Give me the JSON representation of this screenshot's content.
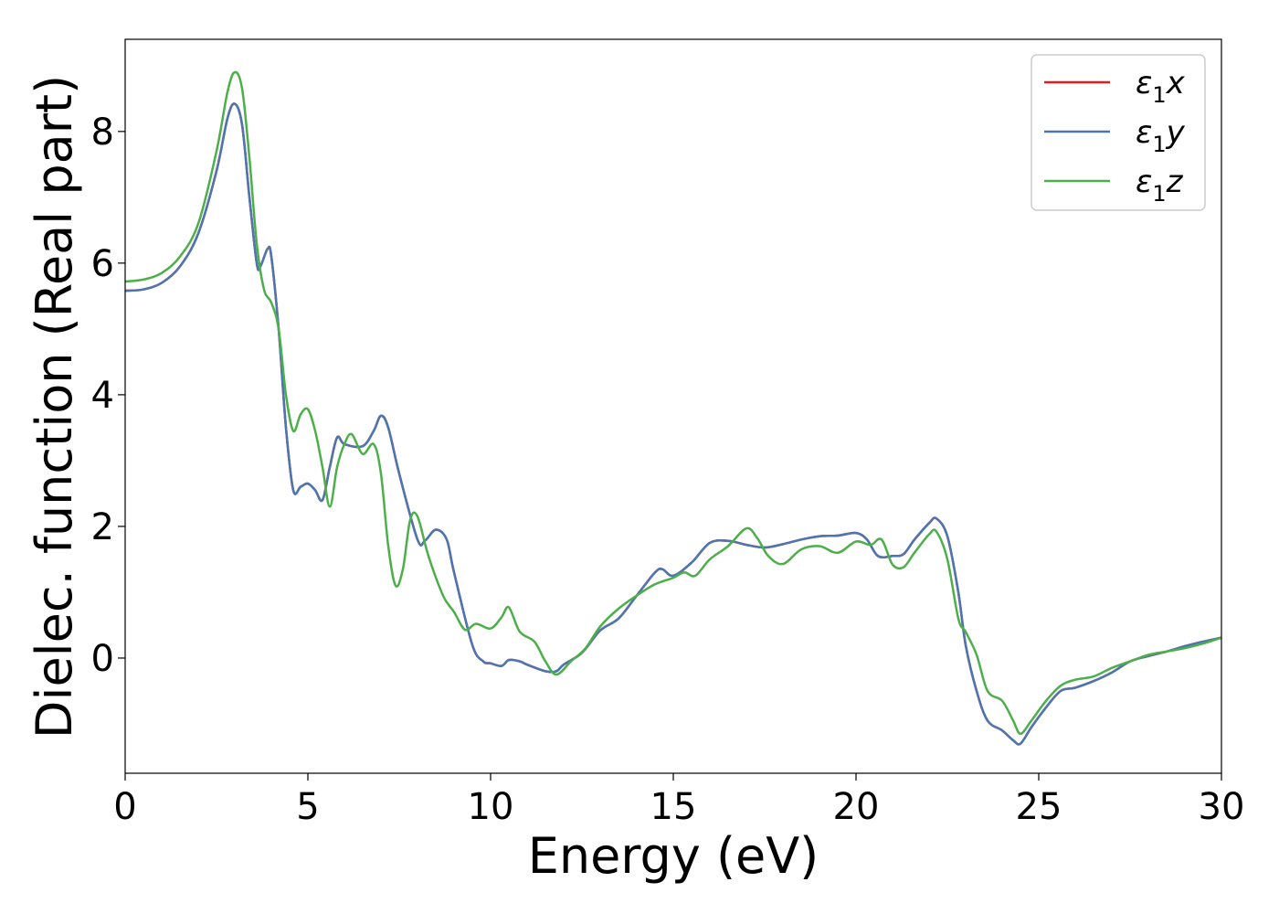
{
  "chart_data": {
    "type": "line",
    "title": "",
    "xlabel": "Energy (eV)",
    "ylabel": "Dielec. function (Real part)",
    "xlim": [
      0,
      30
    ],
    "ylim": [
      -1.75,
      9.4
    ],
    "xticks": [
      0,
      5,
      10,
      15,
      20,
      25,
      30
    ],
    "yticks": [
      0,
      2,
      4,
      6,
      8
    ],
    "grid": false,
    "legend_position": "top-right",
    "series": [
      {
        "name": "ε1x",
        "legend_base": "ε",
        "legend_sub": "1",
        "legend_axis": "x",
        "color": "#e41a1c",
        "points": [
          [
            0,
            5.58
          ],
          [
            0.5,
            5.6
          ],
          [
            1,
            5.7
          ],
          [
            1.5,
            5.95
          ],
          [
            2,
            6.45
          ],
          [
            2.5,
            7.4
          ],
          [
            2.8,
            8.2
          ],
          [
            3.0,
            8.42
          ],
          [
            3.2,
            8.1
          ],
          [
            3.4,
            7.0
          ],
          [
            3.6,
            6.0
          ],
          [
            3.7,
            5.95
          ],
          [
            3.9,
            6.22
          ],
          [
            4.0,
            6.1
          ],
          [
            4.2,
            5.0
          ],
          [
            4.4,
            3.5
          ],
          [
            4.6,
            2.55
          ],
          [
            4.8,
            2.6
          ],
          [
            5.0,
            2.65
          ],
          [
            5.2,
            2.55
          ],
          [
            5.4,
            2.4
          ],
          [
            5.6,
            2.9
          ],
          [
            5.8,
            3.35
          ],
          [
            6.0,
            3.25
          ],
          [
            6.5,
            3.22
          ],
          [
            6.8,
            3.45
          ],
          [
            7.0,
            3.68
          ],
          [
            7.2,
            3.5
          ],
          [
            7.5,
            2.8
          ],
          [
            8.0,
            1.8
          ],
          [
            8.2,
            1.78
          ],
          [
            8.5,
            1.95
          ],
          [
            8.8,
            1.8
          ],
          [
            9.0,
            1.3
          ],
          [
            9.5,
            0.2
          ],
          [
            9.8,
            -0.05
          ],
          [
            10.0,
            -0.08
          ],
          [
            10.3,
            -0.12
          ],
          [
            10.5,
            -0.03
          ],
          [
            10.8,
            -0.05
          ],
          [
            11.0,
            -0.1
          ],
          [
            11.5,
            -0.2
          ],
          [
            11.8,
            -0.2
          ],
          [
            12.0,
            -0.1
          ],
          [
            12.5,
            0.08
          ],
          [
            13.0,
            0.42
          ],
          [
            13.5,
            0.6
          ],
          [
            14.0,
            0.95
          ],
          [
            14.5,
            1.3
          ],
          [
            14.7,
            1.35
          ],
          [
            15.0,
            1.25
          ],
          [
            15.5,
            1.45
          ],
          [
            16.0,
            1.75
          ],
          [
            16.5,
            1.78
          ],
          [
            17.0,
            1.72
          ],
          [
            17.5,
            1.68
          ],
          [
            18.0,
            1.73
          ],
          [
            18.5,
            1.8
          ],
          [
            19.0,
            1.85
          ],
          [
            19.5,
            1.86
          ],
          [
            20.0,
            1.9
          ],
          [
            20.3,
            1.8
          ],
          [
            20.6,
            1.55
          ],
          [
            21.0,
            1.55
          ],
          [
            21.3,
            1.58
          ],
          [
            21.6,
            1.8
          ],
          [
            22.0,
            2.05
          ],
          [
            22.2,
            2.12
          ],
          [
            22.5,
            1.85
          ],
          [
            22.8,
            1.0
          ],
          [
            23.0,
            0.2
          ],
          [
            23.3,
            -0.5
          ],
          [
            23.6,
            -0.95
          ],
          [
            24.0,
            -1.1
          ],
          [
            24.3,
            -1.25
          ],
          [
            24.5,
            -1.3
          ],
          [
            24.8,
            -1.05
          ],
          [
            25.2,
            -0.75
          ],
          [
            25.6,
            -0.5
          ],
          [
            26.0,
            -0.45
          ],
          [
            26.5,
            -0.35
          ],
          [
            27.0,
            -0.22
          ],
          [
            27.5,
            -0.05
          ],
          [
            28.0,
            0.03
          ],
          [
            28.5,
            0.1
          ],
          [
            29.0,
            0.18
          ],
          [
            29.5,
            0.25
          ],
          [
            30.0,
            0.31
          ]
        ]
      },
      {
        "name": "ε1y",
        "legend_base": "ε",
        "legend_sub": "1",
        "legend_axis": "y",
        "color": "#4a77b3",
        "points": [
          [
            0,
            5.58
          ],
          [
            0.5,
            5.6
          ],
          [
            1,
            5.7
          ],
          [
            1.5,
            5.95
          ],
          [
            2,
            6.45
          ],
          [
            2.5,
            7.4
          ],
          [
            2.8,
            8.2
          ],
          [
            3.0,
            8.42
          ],
          [
            3.2,
            8.1
          ],
          [
            3.4,
            7.0
          ],
          [
            3.6,
            6.0
          ],
          [
            3.7,
            5.95
          ],
          [
            3.9,
            6.22
          ],
          [
            4.0,
            6.1
          ],
          [
            4.2,
            5.0
          ],
          [
            4.4,
            3.5
          ],
          [
            4.6,
            2.55
          ],
          [
            4.8,
            2.6
          ],
          [
            5.0,
            2.65
          ],
          [
            5.2,
            2.55
          ],
          [
            5.4,
            2.4
          ],
          [
            5.6,
            2.9
          ],
          [
            5.8,
            3.35
          ],
          [
            6.0,
            3.25
          ],
          [
            6.5,
            3.22
          ],
          [
            6.8,
            3.45
          ],
          [
            7.0,
            3.68
          ],
          [
            7.2,
            3.5
          ],
          [
            7.5,
            2.8
          ],
          [
            8.0,
            1.8
          ],
          [
            8.2,
            1.78
          ],
          [
            8.5,
            1.95
          ],
          [
            8.8,
            1.8
          ],
          [
            9.0,
            1.3
          ],
          [
            9.5,
            0.2
          ],
          [
            9.8,
            -0.05
          ],
          [
            10.0,
            -0.08
          ],
          [
            10.3,
            -0.12
          ],
          [
            10.5,
            -0.03
          ],
          [
            10.8,
            -0.05
          ],
          [
            11.0,
            -0.1
          ],
          [
            11.5,
            -0.2
          ],
          [
            11.8,
            -0.2
          ],
          [
            12.0,
            -0.1
          ],
          [
            12.5,
            0.08
          ],
          [
            13.0,
            0.42
          ],
          [
            13.5,
            0.6
          ],
          [
            14.0,
            0.95
          ],
          [
            14.5,
            1.3
          ],
          [
            14.7,
            1.35
          ],
          [
            15.0,
            1.25
          ],
          [
            15.5,
            1.45
          ],
          [
            16.0,
            1.75
          ],
          [
            16.5,
            1.78
          ],
          [
            17.0,
            1.72
          ],
          [
            17.5,
            1.68
          ],
          [
            18.0,
            1.73
          ],
          [
            18.5,
            1.8
          ],
          [
            19.0,
            1.85
          ],
          [
            19.5,
            1.86
          ],
          [
            20.0,
            1.9
          ],
          [
            20.3,
            1.8
          ],
          [
            20.6,
            1.55
          ],
          [
            21.0,
            1.55
          ],
          [
            21.3,
            1.58
          ],
          [
            21.6,
            1.8
          ],
          [
            22.0,
            2.05
          ],
          [
            22.2,
            2.12
          ],
          [
            22.5,
            1.85
          ],
          [
            22.8,
            1.0
          ],
          [
            23.0,
            0.2
          ],
          [
            23.3,
            -0.5
          ],
          [
            23.6,
            -0.95
          ],
          [
            24.0,
            -1.1
          ],
          [
            24.3,
            -1.25
          ],
          [
            24.5,
            -1.3
          ],
          [
            24.8,
            -1.05
          ],
          [
            25.2,
            -0.75
          ],
          [
            25.6,
            -0.5
          ],
          [
            26.0,
            -0.45
          ],
          [
            26.5,
            -0.35
          ],
          [
            27.0,
            -0.22
          ],
          [
            27.5,
            -0.05
          ],
          [
            28.0,
            0.03
          ],
          [
            28.5,
            0.1
          ],
          [
            29.0,
            0.18
          ],
          [
            29.5,
            0.25
          ],
          [
            30.0,
            0.31
          ]
        ]
      },
      {
        "name": "ε1z",
        "legend_base": "ε",
        "legend_sub": "1",
        "legend_axis": "z",
        "color": "#4daf4a",
        "points": [
          [
            0,
            5.72
          ],
          [
            0.5,
            5.75
          ],
          [
            1,
            5.85
          ],
          [
            1.5,
            6.1
          ],
          [
            2,
            6.6
          ],
          [
            2.5,
            7.7
          ],
          [
            2.8,
            8.6
          ],
          [
            3.0,
            8.9
          ],
          [
            3.2,
            8.65
          ],
          [
            3.4,
            7.6
          ],
          [
            3.6,
            6.3
          ],
          [
            3.8,
            5.6
          ],
          [
            4.0,
            5.4
          ],
          [
            4.2,
            5.0
          ],
          [
            4.4,
            4.0
          ],
          [
            4.6,
            3.45
          ],
          [
            4.8,
            3.7
          ],
          [
            5.0,
            3.78
          ],
          [
            5.2,
            3.45
          ],
          [
            5.4,
            2.9
          ],
          [
            5.6,
            2.3
          ],
          [
            5.8,
            2.9
          ],
          [
            6.0,
            3.25
          ],
          [
            6.2,
            3.4
          ],
          [
            6.5,
            3.1
          ],
          [
            6.8,
            3.25
          ],
          [
            7.0,
            2.8
          ],
          [
            7.2,
            1.7
          ],
          [
            7.4,
            1.1
          ],
          [
            7.6,
            1.35
          ],
          [
            7.8,
            2.1
          ],
          [
            8.0,
            2.15
          ],
          [
            8.3,
            1.55
          ],
          [
            8.7,
            0.95
          ],
          [
            9.0,
            0.7
          ],
          [
            9.3,
            0.43
          ],
          [
            9.6,
            0.52
          ],
          [
            10.0,
            0.45
          ],
          [
            10.3,
            0.62
          ],
          [
            10.5,
            0.77
          ],
          [
            10.8,
            0.4
          ],
          [
            11.2,
            0.25
          ],
          [
            11.5,
            -0.05
          ],
          [
            11.8,
            -0.25
          ],
          [
            12.2,
            -0.05
          ],
          [
            12.6,
            0.15
          ],
          [
            13.0,
            0.48
          ],
          [
            13.5,
            0.75
          ],
          [
            14.0,
            0.95
          ],
          [
            14.5,
            1.12
          ],
          [
            15.0,
            1.22
          ],
          [
            15.3,
            1.3
          ],
          [
            15.6,
            1.25
          ],
          [
            16.0,
            1.5
          ],
          [
            16.5,
            1.7
          ],
          [
            17.0,
            1.97
          ],
          [
            17.3,
            1.82
          ],
          [
            17.6,
            1.55
          ],
          [
            18.0,
            1.43
          ],
          [
            18.5,
            1.65
          ],
          [
            19.0,
            1.7
          ],
          [
            19.5,
            1.6
          ],
          [
            20.0,
            1.77
          ],
          [
            20.4,
            1.72
          ],
          [
            20.7,
            1.8
          ],
          [
            21.0,
            1.42
          ],
          [
            21.3,
            1.38
          ],
          [
            21.6,
            1.6
          ],
          [
            22.0,
            1.88
          ],
          [
            22.2,
            1.92
          ],
          [
            22.5,
            1.5
          ],
          [
            22.8,
            0.6
          ],
          [
            23.0,
            0.4
          ],
          [
            23.3,
            0.05
          ],
          [
            23.6,
            -0.5
          ],
          [
            24.0,
            -0.65
          ],
          [
            24.3,
            -0.95
          ],
          [
            24.5,
            -1.15
          ],
          [
            24.8,
            -0.95
          ],
          [
            25.2,
            -0.65
          ],
          [
            25.6,
            -0.42
          ],
          [
            26.0,
            -0.33
          ],
          [
            26.5,
            -0.28
          ],
          [
            27.0,
            -0.15
          ],
          [
            27.5,
            -0.05
          ],
          [
            28.0,
            0.05
          ],
          [
            28.5,
            0.1
          ],
          [
            29.0,
            0.15
          ],
          [
            29.5,
            0.22
          ],
          [
            30.0,
            0.31
          ]
        ]
      }
    ]
  }
}
